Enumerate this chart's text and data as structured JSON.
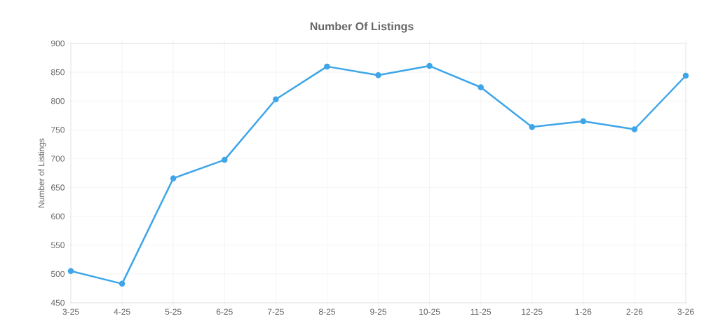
{
  "chart_data": {
    "type": "line",
    "title": "Number Of Listings",
    "ylabel": "Number of Listings",
    "categories": [
      "3-25",
      "4-25",
      "5-25",
      "6-25",
      "7-25",
      "8-25",
      "9-25",
      "10-25",
      "11-25",
      "12-25",
      "1-26",
      "2-26",
      "3-26"
    ],
    "series": [
      {
        "color": "#3ea6e8",
        "values": [
          505,
          483,
          666,
          698,
          803,
          860,
          845,
          861,
          824,
          755,
          765,
          751,
          844
        ]
      }
    ],
    "ylim": [
      450,
      900
    ],
    "yticks": [
      450,
      500,
      550,
      600,
      650,
      700,
      750,
      800,
      850,
      900
    ],
    "grid": true,
    "marker": "circle",
    "line_style": "solid",
    "legend": false
  }
}
